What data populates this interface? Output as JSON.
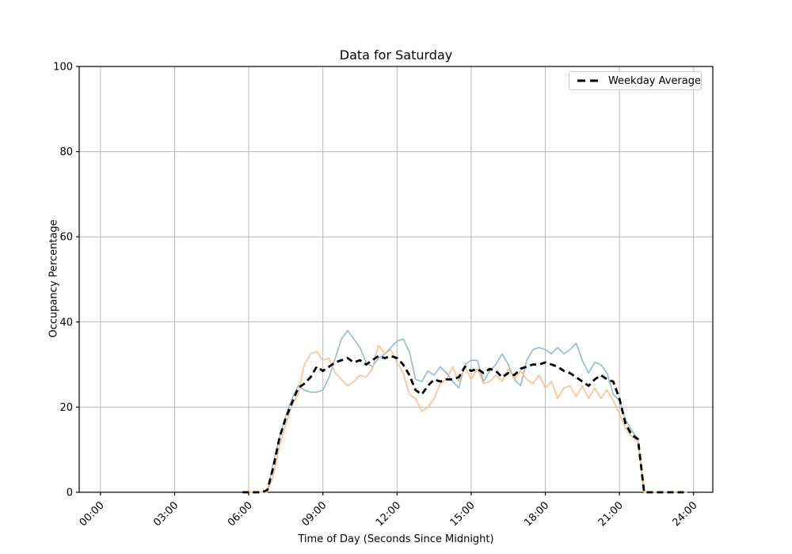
{
  "chart_data": {
    "type": "line",
    "title": "Data for Saturday",
    "xlabel": "Time of Day (Seconds Since Midnight)",
    "ylabel": "Occupancy Percentage",
    "x_tick_seconds": [
      0,
      10800,
      21600,
      32400,
      43200,
      54000,
      64800,
      75600,
      86400
    ],
    "x_tick_labels": [
      "00:00",
      "03:00",
      "06:00",
      "09:00",
      "12:00",
      "15:00",
      "18:00",
      "21:00",
      "24:00"
    ],
    "y_ticks": [
      0,
      20,
      40,
      60,
      80,
      100
    ],
    "xlim_seconds": [
      -3100,
      89200
    ],
    "ylim": [
      0,
      100
    ],
    "grid": true,
    "legend_position": "upper right",
    "x_seconds": [
      20700,
      21600,
      22500,
      23400,
      24300,
      25200,
      26100,
      27000,
      27900,
      28800,
      29700,
      30600,
      31500,
      32400,
      33300,
      34200,
      35100,
      36000,
      36900,
      37800,
      38700,
      39600,
      40500,
      41400,
      42300,
      43200,
      44100,
      45000,
      45900,
      46800,
      47700,
      48600,
      49500,
      50400,
      51300,
      52200,
      53100,
      54000,
      54900,
      55800,
      56700,
      57600,
      58500,
      59400,
      60300,
      61200,
      62100,
      63000,
      63900,
      64800,
      65700,
      66600,
      67500,
      68400,
      69300,
      70200,
      71100,
      72000,
      72900,
      73800,
      74700,
      75600,
      76500,
      77400,
      78300,
      79200,
      80100,
      81000,
      81900,
      82800,
      83700,
      84600,
      85500
    ],
    "series": [
      {
        "name": "series_1",
        "color": "#8fbbd9",
        "line_width": 1.6,
        "dash": null,
        "values": [
          0,
          0,
          0,
          0,
          0,
          7,
          13,
          18,
          22,
          25,
          24,
          23.5,
          23.5,
          24,
          27,
          31.5,
          36,
          38,
          36,
          34,
          30.5,
          29.5,
          31.5,
          32.5,
          34,
          35.5,
          36,
          33,
          26.5,
          26,
          28.5,
          27.5,
          29.5,
          28,
          26,
          24.5,
          30,
          31,
          31,
          26,
          28.5,
          30,
          32.5,
          30,
          26.5,
          25,
          31,
          33.5,
          34,
          33.5,
          32.5,
          34,
          32.5,
          33.5,
          35,
          31,
          28,
          30.5,
          30,
          28,
          23,
          21.5,
          17,
          14.5,
          12.5,
          0,
          0,
          0,
          0,
          0,
          0,
          0,
          0
        ]
      },
      {
        "name": "series_2",
        "color": "#ffbf87",
        "line_width": 1.6,
        "dash": null,
        "values": [
          0,
          0,
          0,
          0,
          0,
          4,
          11,
          16,
          20.5,
          23,
          30,
          32.5,
          33,
          31,
          31.5,
          28,
          26.5,
          25,
          26,
          27.5,
          27,
          29,
          34.5,
          32.5,
          33.5,
          30.5,
          28,
          23,
          22,
          19,
          20,
          22,
          25.5,
          26.5,
          29.5,
          26,
          29.5,
          26.5,
          29,
          25.5,
          26,
          27.5,
          26,
          29,
          26.5,
          28.5,
          26.5,
          25.5,
          27.5,
          24.5,
          26,
          22,
          24.5,
          25,
          22.5,
          25,
          22,
          24.5,
          22,
          24,
          21.5,
          18.5,
          15,
          13,
          12,
          0,
          0,
          0,
          0,
          0,
          0,
          0,
          0
        ]
      },
      {
        "name": "Weekday Average",
        "color": "#000000",
        "line_width": 2.8,
        "dash": [
          8,
          5
        ],
        "values": [
          0,
          0,
          0,
          0,
          0.5,
          6,
          13,
          17.5,
          21,
          24.5,
          25.5,
          27,
          29.5,
          28.5,
          29.5,
          30.5,
          31,
          31.5,
          30.5,
          31,
          30,
          31,
          32,
          31.5,
          32,
          31.5,
          30,
          27.5,
          24,
          23,
          25,
          26.5,
          26,
          26.5,
          26.5,
          27,
          29.5,
          28.5,
          29,
          28,
          29,
          28.5,
          27,
          28,
          27.5,
          29,
          29.5,
          30,
          30,
          30.5,
          30,
          29.5,
          28.5,
          28,
          27,
          26,
          25,
          26.5,
          27.5,
          26.5,
          26,
          22,
          16,
          13.5,
          12.5,
          0,
          0,
          0,
          0,
          0,
          0,
          0,
          0
        ]
      }
    ],
    "colors": {
      "grid": "#b8b8b8",
      "spine": "#000000",
      "tick_label": "#000000",
      "background": "#ffffff",
      "legend_border": "#cccccc"
    }
  }
}
